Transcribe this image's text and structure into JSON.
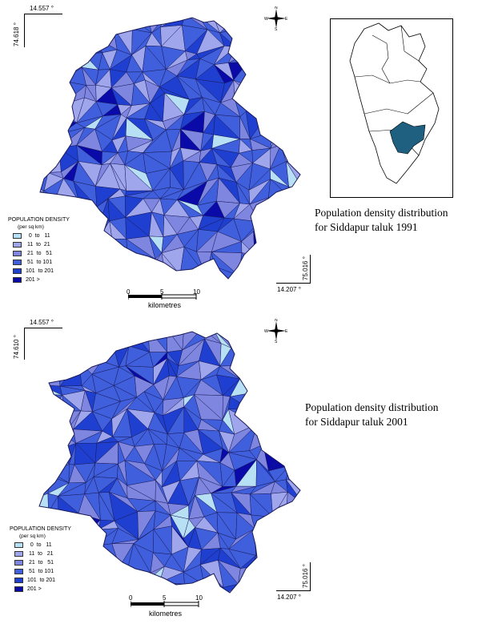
{
  "colors": {
    "c0": "#b8e0f5",
    "c1": "#9fa6ec",
    "c2": "#7f86e0",
    "c3": "#3f5fdc",
    "c4": "#1f3fd0",
    "c5": "#0a0aa8",
    "inset_highlight": "#1f5f7f",
    "border": "#1a1a5a"
  },
  "map1991": {
    "coord_top_lat": "14.557 °",
    "coord_left_lon": "74.618 °",
    "coord_right_lon": "75.016 °",
    "coord_bottom_lat": "14.207 °",
    "caption_line1": "Population density distribution",
    "caption_line2": "for Siddapur taluk 1991"
  },
  "map2001": {
    "coord_top_lat": "14.557 °",
    "coord_left_lon": "74.610 °",
    "coord_right_lon": "75.016 °",
    "coord_bottom_lat": "14.207 °",
    "caption_line1": "Population density distribution",
    "caption_line2": "for Siddapur taluk 2001"
  },
  "legend": {
    "title": "POPULATION DENSITY",
    "unit": "(per sq km)",
    "items": [
      {
        "label": "  0  to   11",
        "color_key": "c0"
      },
      {
        "label": " 11  to  21",
        "color_key": "c1"
      },
      {
        "label": " 21  to   51",
        "color_key": "c2"
      },
      {
        "label": " 51  to 101",
        "color_key": "c3"
      },
      {
        "label": "101  to 201",
        "color_key": "c4"
      },
      {
        "label": "201 >",
        "color_key": "c5"
      }
    ]
  },
  "legend2001": {
    "items": [
      {
        "label": "  0  to   11",
        "color_key": "c0"
      },
      {
        "label": " 11  to   21",
        "color_key": "c1"
      },
      {
        "label": " 21  to   51",
        "color_key": "c2"
      },
      {
        "label": " 51  to 101",
        "color_key": "c3"
      },
      {
        "label": "101  to 201",
        "color_key": "c4"
      },
      {
        "label": "201 >",
        "color_key": "c5"
      }
    ]
  },
  "scale": {
    "ticks": [
      "0",
      "5",
      "10"
    ],
    "unit": "kilometres"
  },
  "compass": {
    "n": "N",
    "s": "S",
    "e": "E",
    "w": "W"
  }
}
